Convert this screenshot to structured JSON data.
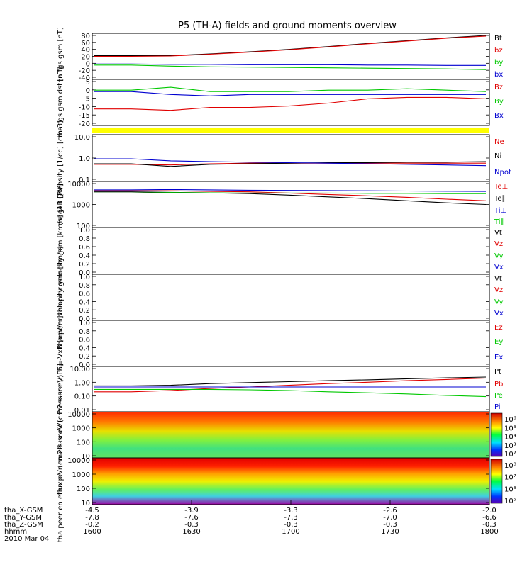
{
  "title": "P5 (TH-A) fields and ground moments overview",
  "colors": {
    "black": "#000000",
    "red": "#e00000",
    "green": "#00c800",
    "blue": "#0000d0",
    "yellow": "#ffff00"
  },
  "footer": {
    "row_labels": [
      "tha_X-GSM",
      "tha_Y-GSM",
      "tha_Z-GSM",
      "hhmm",
      "2010 Mar 04"
    ],
    "ticks": [
      {
        "x": "-4.5",
        "y": "-7.8",
        "z": "-0.2",
        "t": "1600"
      },
      {
        "x": "-3.9",
        "y": "-7.6",
        "z": "-0.3",
        "t": "1630"
      },
      {
        "x": "-3.3",
        "y": "-7.3",
        "z": "-0.3",
        "t": "1700"
      },
      {
        "x": "-2.6",
        "y": "-7.0",
        "z": "-0.3",
        "t": "1730"
      },
      {
        "x": "-2.0",
        "y": "-6.6",
        "z": "-0.3",
        "t": "1800"
      }
    ]
  },
  "chart_data": [
    {
      "type": "line",
      "panel": "fgs_gsm",
      "ylabel": "tha fgs gsm [nT]",
      "ticks": [
        "80",
        "60",
        "40",
        "20",
        "0",
        "-20",
        "-40"
      ],
      "ylim": [
        -40,
        80
      ],
      "series": [
        {
          "name": "Bt",
          "color": "black",
          "values": [
            22,
            22,
            27,
            33,
            40,
            48,
            57,
            65,
            73,
            80
          ]
        },
        {
          "name": "bz",
          "color": "red",
          "values": [
            20,
            21,
            26,
            32,
            39,
            47,
            56,
            64,
            72,
            78
          ]
        },
        {
          "name": "by",
          "color": "green",
          "values": [
            -5,
            -8,
            -10,
            -11,
            -12,
            -13,
            -14,
            -15,
            -16,
            -18
          ]
        },
        {
          "name": "bx",
          "color": "blue",
          "values": [
            -2,
            -3,
            -3,
            -4,
            -4,
            -4,
            -5,
            -5,
            -6,
            -6
          ]
        }
      ]
    },
    {
      "type": "line",
      "panel": "fgs_dsl",
      "ylabel": "tha fgs gsm dsl [nT]",
      "ticks": [
        "5",
        "0",
        "-5",
        "-10",
        "-15",
        "-20"
      ],
      "ylim": [
        -22,
        7
      ],
      "series": [
        {
          "name": "Bz",
          "color": "red",
          "values": [
            -12,
            -13,
            -11,
            -11,
            -10,
            -8,
            -5,
            -4,
            -4,
            -5
          ]
        },
        {
          "name": "By",
          "color": "green",
          "values": [
            1,
            3,
            0,
            0,
            0,
            1,
            1,
            2,
            1,
            0
          ]
        },
        {
          "name": "Bx",
          "color": "blue",
          "values": [
            0,
            -2,
            -3,
            -2,
            -2,
            -2,
            -2,
            -2,
            -2,
            -2
          ]
        }
      ]
    },
    {
      "type": "line",
      "panel": "density",
      "ylabel": "Density [1/cc] [cm-3]",
      "ticks": [
        "10.0",
        "1.0",
        "0.1"
      ],
      "ylim": [
        0.1,
        20
      ],
      "log": true,
      "series": [
        {
          "name": "Ne",
          "color": "red",
          "values": [
            0.65,
            0.6,
            0.7,
            0.75,
            0.75,
            0.75,
            0.75,
            0.75,
            0.75,
            0.75
          ]
        },
        {
          "name": "Ni",
          "color": "black",
          "values": [
            0.7,
            0.5,
            0.65,
            0.7,
            0.75,
            0.8,
            0.8,
            0.85,
            0.85,
            0.9
          ]
        },
        {
          "name": "Npot",
          "color": "blue",
          "values": [
            1.3,
            1.0,
            0.9,
            0.85,
            0.8,
            0.75,
            0.7,
            0.65,
            0.6,
            0.55
          ]
        }
      ]
    },
    {
      "type": "line",
      "panel": "temperature",
      "ylabel": "mag13 [eV]",
      "ticks": [
        "10000",
        "1000",
        "100"
      ],
      "ylim": [
        100,
        10000
      ],
      "log": true,
      "series": [
        {
          "name": "Te⊥",
          "color": "red",
          "values": [
            4500,
            4500,
            4200,
            4000,
            3500,
            3000,
            2600,
            2200,
            1800,
            1500
          ]
        },
        {
          "name": "Te∥",
          "color": "black",
          "values": [
            4000,
            3800,
            3600,
            3300,
            2800,
            2300,
            1900,
            1500,
            1200,
            1000
          ]
        },
        {
          "name": "Ti⊥",
          "color": "blue",
          "values": [
            5000,
            5200,
            5000,
            4800,
            4700,
            4600,
            4500,
            4400,
            4300,
            4200
          ]
        },
        {
          "name": "Ti∥",
          "color": "green",
          "values": [
            3500,
            3700,
            3600,
            3500,
            3500,
            3500,
            3400,
            3400,
            3300,
            3300
          ]
        }
      ]
    },
    {
      "type": "line",
      "panel": "peir_velocity",
      "ylabel": "tha peir velocity gsm [km/s] (All Qs)",
      "ticks": [
        "1.0",
        "0.8",
        "0.6",
        "0.4",
        "0.2",
        "0.0"
      ],
      "ylim": [
        0,
        1
      ],
      "series": [
        {
          "name": "Vt",
          "color": "black"
        },
        {
          "name": "Vz",
          "color": "red"
        },
        {
          "name": "Vy",
          "color": "green"
        },
        {
          "name": "Vx",
          "color": "blue"
        }
      ]
    },
    {
      "type": "line",
      "panel": "peer_velocity",
      "ylabel": "tha peer velocity gsm [km/s]",
      "ticks": [
        "1.0",
        "0.8",
        "0.6",
        "0.4",
        "0.2",
        "0.0"
      ],
      "ylim": [
        0,
        1
      ],
      "series": [
        {
          "name": "Vt",
          "color": "black"
        },
        {
          "name": "Vz",
          "color": "red"
        },
        {
          "name": "Vy",
          "color": "green"
        },
        {
          "name": "Vx",
          "color": "blue"
        }
      ]
    },
    {
      "type": "line",
      "panel": "efield",
      "ylabel": "E=-VxB [mV/m]",
      "ticks": [
        "1.0",
        "0.8",
        "0.6",
        "0.4",
        "0.2",
        "0.0"
      ],
      "ylim": [
        0,
        1
      ],
      "series": [
        {
          "name": "Ez",
          "color": "red"
        },
        {
          "name": "Ey",
          "color": "green"
        },
        {
          "name": "Ex",
          "color": "blue"
        }
      ]
    },
    {
      "type": "line",
      "panel": "pressure",
      "ylabel": "Pressure [nPa]",
      "ticks": [
        "10.00",
        "1.00",
        "0.10",
        "0.01"
      ],
      "ylim": [
        0.01,
        10
      ],
      "log": true,
      "series": [
        {
          "name": "Pt",
          "color": "black",
          "values": [
            0.55,
            0.6,
            0.8,
            0.95,
            1.1,
            1.3,
            1.5,
            1.8,
            2.1,
            2.4
          ]
        },
        {
          "name": "Pb",
          "color": "red",
          "values": [
            0.2,
            0.25,
            0.35,
            0.45,
            0.6,
            0.8,
            1.0,
            1.3,
            1.6,
            2.0
          ]
        },
        {
          "name": "Pe",
          "color": "green",
          "values": [
            0.3,
            0.3,
            0.3,
            0.28,
            0.25,
            0.2,
            0.17,
            0.14,
            0.11,
            0.09
          ]
        },
        {
          "name": "Pi",
          "color": "blue",
          "values": [
            0.45,
            0.45,
            0.45,
            0.45,
            0.45,
            0.45,
            0.45,
            0.45,
            0.45,
            0.45
          ]
        }
      ]
    },
    {
      "type": "heatmap",
      "panel": "peir_spec",
      "ylabel": "tha peir en eflux eV (cm2-s-sr-eV)",
      "ticks": [
        "10000",
        "1000",
        "100",
        "10"
      ],
      "colorbar_labels": [
        "10⁶",
        "10⁵",
        "10⁴",
        "10³",
        "10²"
      ]
    },
    {
      "type": "heatmap",
      "panel": "peer_spec",
      "ylabel": "tha peer en eflux eV (cm2-s-sr-eV)",
      "ticks": [
        "10000",
        "1000",
        "100",
        "10"
      ],
      "colorbar_labels": [
        "10⁸",
        "10⁷",
        "10⁶",
        "10⁵"
      ]
    }
  ]
}
